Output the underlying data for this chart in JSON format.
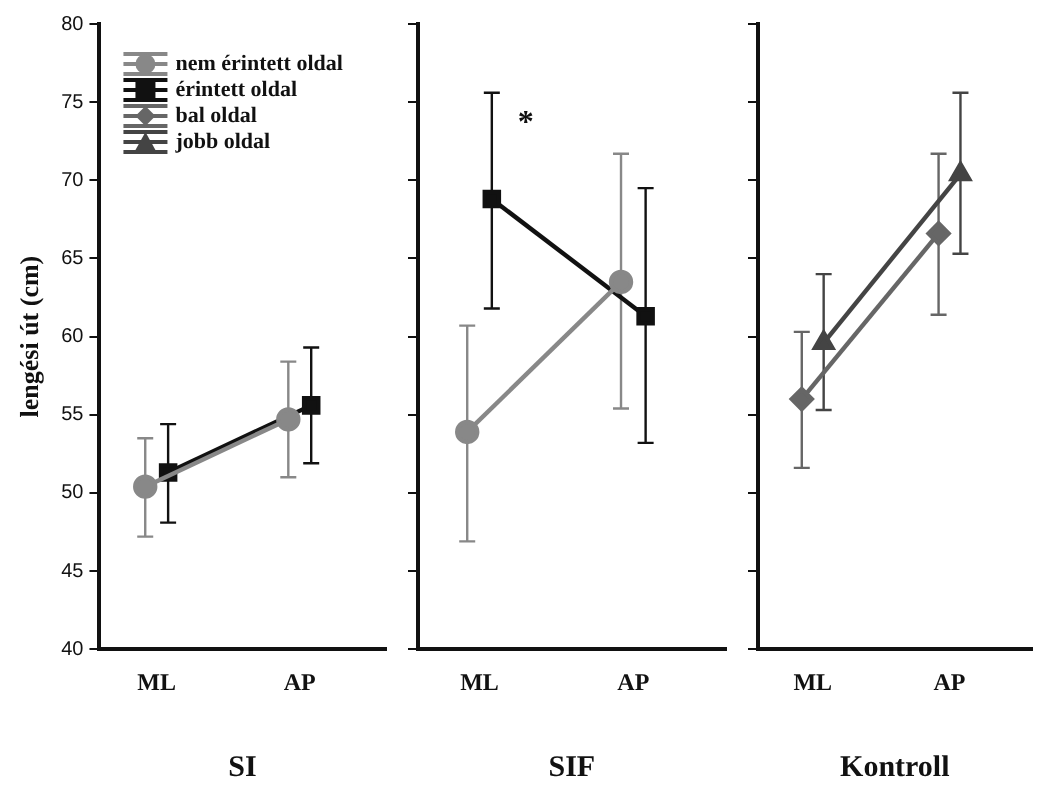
{
  "chart_data": [
    {
      "type": "line",
      "categories": [
        "ML",
        "AP"
      ],
      "xlabel": "SI",
      "ylabel": "lengési út (cm)",
      "ylim": [
        40,
        80
      ],
      "yticks": [
        40,
        45,
        50,
        55,
        60,
        65,
        70,
        75,
        80
      ],
      "legend": "top left",
      "line_style": "solid",
      "series": [
        {
          "name": "nem érintett oldal",
          "color": "#888888",
          "marker": "circle",
          "values": [
            50.4,
            54.7
          ],
          "errors": [
            [
              47.2,
              53.5
            ],
            [
              51,
              58.4
            ]
          ]
        },
        {
          "name": "érintett oldal",
          "color": "#111111",
          "marker": "square",
          "values": [
            51.3,
            55.6
          ],
          "errors": [
            [
              48.1,
              54.4
            ],
            [
              51.9,
              59.3
            ]
          ]
        },
        {
          "name": "bal oldal",
          "color": "#666666",
          "marker": "diamond",
          "values": [
            null,
            null
          ]
        },
        {
          "name": "jobb oldal",
          "color": "#444444",
          "marker": "triangle",
          "values": [
            null,
            null
          ]
        }
      ]
    },
    {
      "type": "line",
      "categories": [
        "ML",
        "AP"
      ],
      "xlabel": "SIF",
      "ylim": [
        40,
        80
      ],
      "yticks": [
        40,
        45,
        50,
        55,
        60,
        65,
        70,
        75,
        80
      ],
      "tick_labels": "x",
      "line_style": "solid",
      "annotations": [
        "*"
      ],
      "series": [
        {
          "color": "#888888",
          "marker": "circle",
          "values": [
            53.9,
            63.5
          ],
          "errors": [
            [
              46.9,
              60.7
            ],
            [
              55.4,
              71.7
            ]
          ]
        },
        {
          "color": "#111111",
          "marker": "square",
          "values": [
            68.8,
            61.3
          ],
          "errors": [
            [
              61.8,
              75.6
            ],
            [
              53.2,
              69.5
            ]
          ]
        }
      ]
    },
    {
      "type": "line",
      "categories": [
        "ML",
        "AP"
      ],
      "xlabel": "Kontroll",
      "ylim": [
        40,
        80
      ],
      "yticks": [
        40,
        45,
        50,
        55,
        60,
        65,
        70,
        75,
        80
      ],
      "tick_labels": "x",
      "line_style": "solid",
      "series": [
        {
          "color": "#666666",
          "marker": "diamond",
          "values": [
            56.0,
            66.6
          ],
          "errors": [
            [
              51.6,
              60.3
            ],
            [
              61.4,
              71.7
            ]
          ]
        },
        {
          "color": "#444444",
          "marker": "triangle",
          "values": [
            59.6,
            70.4
          ],
          "errors": [
            [
              55.3,
              64
            ],
            [
              65.3,
              75.6
            ]
          ]
        }
      ]
    }
  ]
}
